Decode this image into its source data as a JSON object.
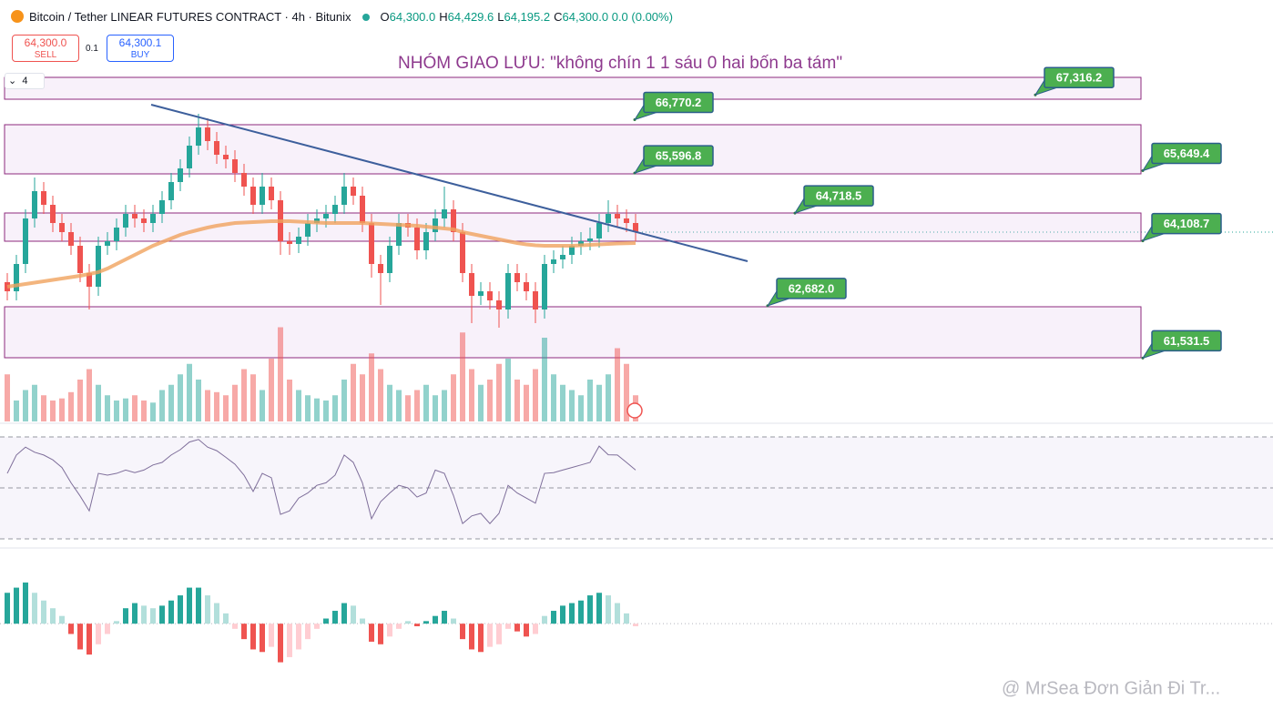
{
  "header": {
    "symbol": "Bitcoin / Tether LINEAR FUTURES CONTRACT · 4h · Bitunix",
    "ohlc": [
      {
        "key": "O",
        "value": "64,300.0"
      },
      {
        "key": "H",
        "value": "64,429.6"
      },
      {
        "key": "L",
        "value": "64,195.2"
      },
      {
        "key": "C",
        "value": "64,300.0"
      }
    ],
    "change": "0.0 (0.00%)"
  },
  "order_panel": {
    "sell_price": "64,300.0",
    "sell": "SELL",
    "quantity": "0.1",
    "buy_price": "64,300.1",
    "buy": "BUY"
  },
  "indicator_count": 4,
  "watermark": "@ MrSea Đơn Giản Đi Tr...",
  "chart_data": {
    "type": "candlestick",
    "annotation": "NHÓM GIAO LƯU: \"không chín 1 1 sáu 0 hai bốn ba tám\"",
    "up_color": "#26a69a",
    "down_color": "#ef5350",
    "ylim": [
      60100,
      69400
    ],
    "open": [
      63200,
      63000,
      63600,
      64600,
      65200,
      64900,
      64500,
      64300,
      64000,
      63400,
      63100,
      64000,
      64100,
      64400,
      64700,
      64600,
      64500,
      64700,
      65000,
      65400,
      65700,
      66200,
      66600,
      66300,
      66000,
      65900,
      65600,
      65300,
      64900,
      65300,
      65000,
      64100,
      64040,
      64200,
      64500,
      64600,
      64700,
      64900,
      65300,
      65100,
      64500,
      63600,
      63400,
      64000,
      64500,
      64400,
      63900,
      64300,
      64600,
      64800,
      64300,
      63400,
      62900,
      63000,
      62800,
      62600,
      63400,
      63200,
      63000,
      62600,
      63600,
      63700,
      63800,
      64000,
      64100,
      64160,
      64500,
      64700,
      64600,
      64500
    ],
    "high": [
      63400,
      63800,
      64800,
      65500,
      65400,
      65100,
      64700,
      64500,
      64200,
      63600,
      64200,
      64300,
      64600,
      64900,
      64900,
      64800,
      64900,
      65200,
      65600,
      65900,
      66400,
      66900,
      66800,
      66500,
      66200,
      66100,
      65800,
      65500,
      65600,
      65500,
      65200,
      64300,
      64400,
      64700,
      64800,
      64900,
      65100,
      65600,
      65500,
      65300,
      64700,
      63800,
      64200,
      64700,
      64700,
      64600,
      64500,
      64800,
      65300,
      65000,
      64500,
      63600,
      63200,
      63200,
      63000,
      63600,
      63600,
      63400,
      63200,
      63800,
      63900,
      64000,
      64200,
      64300,
      64400,
      64700,
      65000,
      64900,
      64800,
      64700
    ],
    "low": [
      62800,
      62800,
      63400,
      64400,
      64700,
      64300,
      64100,
      63800,
      63200,
      62600,
      62900,
      63800,
      63900,
      64200,
      64400,
      64300,
      64300,
      64500,
      64800,
      65200,
      65500,
      66000,
      66100,
      65800,
      65700,
      65400,
      65100,
      64700,
      64700,
      64800,
      63800,
      63800,
      63840,
      64000,
      64300,
      64400,
      64500,
      64700,
      64900,
      64300,
      63300,
      62700,
      63200,
      63800,
      64200,
      63700,
      63700,
      64100,
      64400,
      64100,
      63200,
      62300,
      62700,
      62600,
      62200,
      62400,
      63000,
      62800,
      62300,
      62400,
      63400,
      63500,
      63600,
      63800,
      63900,
      63960,
      64300,
      64400,
      64300,
      64100
    ],
    "close": [
      63000,
      63600,
      64600,
      65200,
      64900,
      64500,
      64300,
      64000,
      63400,
      63100,
      64000,
      64100,
      64400,
      64700,
      64600,
      64500,
      64700,
      65000,
      65400,
      65700,
      66200,
      66600,
      66300,
      66000,
      65900,
      65600,
      65300,
      64900,
      65300,
      65000,
      64100,
      64040,
      64200,
      64500,
      64600,
      64700,
      64900,
      65300,
      65100,
      64500,
      63600,
      63400,
      64000,
      64500,
      64400,
      63900,
      64300,
      64600,
      64800,
      64300,
      63400,
      62900,
      63000,
      62800,
      62600,
      63400,
      63200,
      63000,
      62600,
      63600,
      63700,
      63800,
      64000,
      64100,
      64160,
      64500,
      64700,
      64600,
      64500,
      64300
    ],
    "ma": [
      63100,
      63130,
      63160,
      63190,
      63220,
      63250,
      63280,
      63310,
      63340,
      63380,
      63420,
      63500,
      63600,
      63700,
      63800,
      63900,
      64000,
      64080,
      64160,
      64240,
      64300,
      64350,
      64400,
      64440,
      64470,
      64500,
      64510,
      64520,
      64530,
      64540,
      64540,
      64540,
      64530,
      64520,
      64510,
      64500,
      64500,
      64500,
      64500,
      64500,
      64490,
      64480,
      64470,
      64460,
      64450,
      64440,
      64420,
      64400,
      64380,
      64360,
      64300,
      64260,
      64220,
      64180,
      64140,
      64100,
      64060,
      64030,
      64010,
      64000,
      64000,
      64000,
      64000,
      64010,
      64020,
      64030,
      64040,
      64050,
      64055,
      64060
    ],
    "volume": [
      45,
      20,
      30,
      35,
      25,
      20,
      22,
      28,
      40,
      50,
      35,
      25,
      20,
      22,
      25,
      20,
      18,
      30,
      35,
      45,
      55,
      40,
      30,
      28,
      25,
      35,
      50,
      45,
      30,
      60,
      90,
      40,
      30,
      25,
      22,
      20,
      25,
      40,
      55,
      45,
      65,
      50,
      35,
      30,
      25,
      30,
      35,
      25,
      30,
      45,
      85,
      50,
      35,
      40,
      55,
      60,
      40,
      35,
      50,
      80,
      45,
      35,
      30,
      25,
      40,
      35,
      45,
      70,
      55,
      25
    ],
    "zones": [
      {
        "from": 67220,
        "to": 67700
      },
      {
        "from": 65580,
        "to": 66660
      },
      {
        "from": 64100,
        "to": 64720
      },
      {
        "from": 61540,
        "to": 62660
      }
    ],
    "trendline": {
      "x": [
        15.8,
        81.3
      ],
      "y": [
        67100,
        63660
      ]
    },
    "price_labels": [
      {
        "value": 67316.2,
        "label": "67,316.2"
      },
      {
        "value": 66770.2,
        "label": "66,770.2"
      },
      {
        "value": 65596.8,
        "label": "65,596.8"
      },
      {
        "value": 65649.4,
        "label": "65,649.4"
      },
      {
        "value": 64718.5,
        "label": "64,718.5"
      },
      {
        "value": 64108.7,
        "label": "64,108.7"
      },
      {
        "value": 62682.0,
        "label": "62,682.0"
      },
      {
        "value": 61531.5,
        "label": "61,531.5"
      }
    ],
    "rsi": {
      "ylim": [
        25,
        75
      ],
      "levels": [
        70,
        50,
        30
      ],
      "values": [
        55.7,
        62.9,
        66,
        64,
        62.9,
        61,
        58,
        52,
        46.8,
        41,
        55.7,
        55,
        55.7,
        57,
        56,
        57,
        59,
        60,
        62.9,
        65,
        68,
        69,
        66,
        64.6,
        62,
        59.3,
        55,
        48.6,
        55.7,
        54,
        39.6,
        41,
        46,
        48,
        51,
        52,
        55,
        62.9,
        60,
        52,
        37.9,
        44.6,
        48,
        51,
        50,
        46.4,
        48,
        57,
        55.7,
        47,
        36,
        39,
        40,
        36,
        40,
        51,
        48,
        46,
        44,
        55.7,
        56,
        57,
        58,
        59,
        60,
        66.4,
        63,
        62.9,
        60,
        57
      ]
    },
    "macd": {
      "ylim": [
        -300,
        280
      ],
      "histogram": [
        120,
        140,
        160,
        120,
        90,
        60,
        30,
        -40,
        -100,
        -120,
        -80,
        -40,
        10,
        60,
        80,
        70,
        60,
        70,
        90,
        110,
        140,
        140,
        110,
        80,
        40,
        -20,
        -60,
        -100,
        -110,
        -90,
        -150,
        -130,
        -100,
        -60,
        -20,
        20,
        50,
        80,
        70,
        20,
        -70,
        -80,
        -50,
        -20,
        10,
        -10,
        10,
        30,
        50,
        20,
        -60,
        -100,
        -110,
        -90,
        -80,
        -20,
        -30,
        -50,
        -40,
        30,
        50,
        70,
        80,
        90,
        110,
        120,
        110,
        80,
        40,
        -10
      ]
    }
  }
}
